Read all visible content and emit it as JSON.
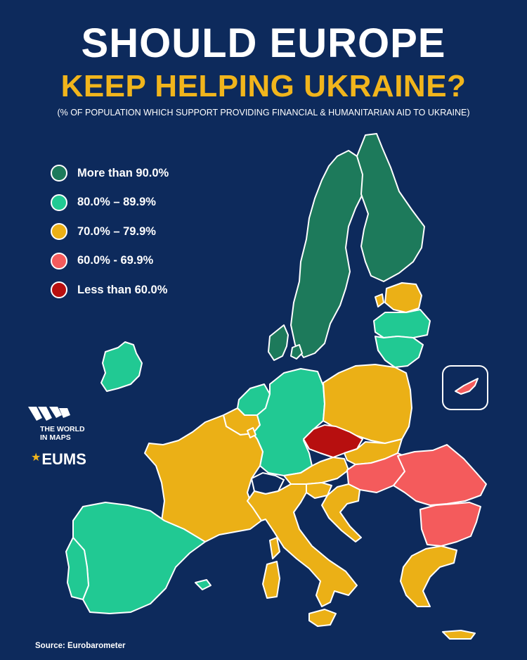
{
  "title_line1": "SHOULD EUROPE",
  "title_line2": "KEEP HELPING UKRAINE?",
  "subtitle": "(% OF POPULATION WHICH SUPPORT PROVIDING FINANCIAL & HUMANITARIAN AID TO UKRAINE)",
  "legend": [
    {
      "label": "More than 90.0%",
      "color": "#1d7a5b"
    },
    {
      "label": "80.0% – 89.9%",
      "color": "#21c993"
    },
    {
      "label": "70.0% – 79.9%",
      "color": "#ebb016"
    },
    {
      "label": "60.0% - 69.9%",
      "color": "#f45b5c"
    },
    {
      "label": "Less than 60.0%",
      "color": "#b70f0f"
    }
  ],
  "colors": {
    "background": "#0d2a5c",
    "title_accent": "#f1b51c"
  },
  "logos": {
    "world_in_maps": "THE WORLD IN MAPS",
    "eums": "EUMS"
  },
  "source": "Source: Eurobarometer"
}
